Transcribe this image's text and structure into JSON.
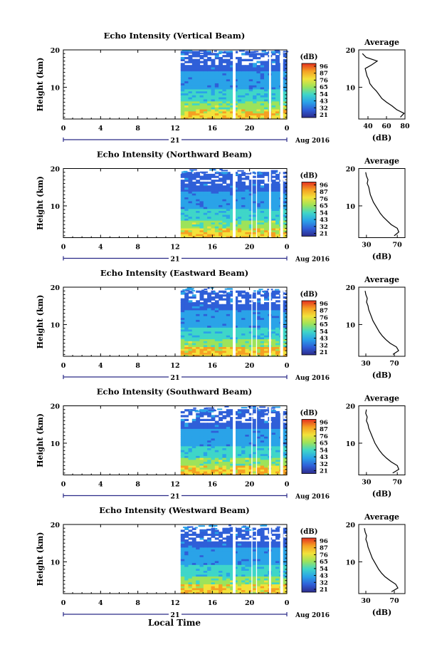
{
  "figure": {
    "xlabel": "Local Time",
    "x_ticks": [
      "0",
      "4",
      "8",
      "12",
      "16",
      "20",
      "0"
    ],
    "day_label": "21",
    "date_label": "Aug 2016",
    "ylabel": "Height (km)",
    "y_ticks": [
      "20",
      "10"
    ],
    "colorbar_unit": "(dB)",
    "avg_title": "Average",
    "avg_xlabel": "(dB)"
  },
  "chart_data": [
    {
      "type": "heatmap",
      "title": "Echo Intensity (Vertical Beam)",
      "x_range_hours": [
        0,
        24
      ],
      "data_start_hour": 12.6,
      "y_range_km": [
        1.5,
        20
      ],
      "data_top_km": 19.2,
      "gaps_hours": [
        [
          18.2,
          18.5
        ],
        [
          22.1,
          22.3
        ],
        [
          23.3,
          23.6
        ]
      ],
      "colorbar": {
        "min": 21,
        "max": 96,
        "ticks": [
          "96",
          "87",
          "76",
          "65",
          "54",
          "43",
          "32",
          "21"
        ]
      },
      "colors": [
        "#2d2c8c",
        "#2f5fd8",
        "#2aa3e8",
        "#3fd6c8",
        "#9de35a",
        "#f2e23a",
        "#f5a022",
        "#e4301f"
      ],
      "average_profile": {
        "x_range": [
          30,
          80
        ],
        "x_ticks": [
          "40",
          "60",
          "80"
        ],
        "height_km": [
          2,
          3,
          4,
          5,
          6,
          7,
          8,
          9,
          10,
          11,
          12,
          13,
          14,
          15,
          16,
          17,
          18,
          19
        ],
        "db": [
          75,
          79,
          71,
          66,
          60,
          55,
          52,
          49,
          45,
          42,
          41,
          39,
          38,
          37,
          44,
          50,
          38,
          34
        ]
      }
    },
    {
      "type": "heatmap",
      "title": "Echo Intensity (Northward Beam)",
      "x_range_hours": [
        0,
        24
      ],
      "data_start_hour": 12.6,
      "y_range_km": [
        1.5,
        20
      ],
      "data_top_km": 18.6,
      "gaps_hours": [
        [
          18.2,
          18.5
        ],
        [
          20.2,
          20.3
        ],
        [
          20.7,
          20.8
        ],
        [
          22.1,
          22.3
        ],
        [
          23.3,
          23.6
        ]
      ],
      "colorbar": {
        "min": 21,
        "max": 96,
        "ticks": [
          "96",
          "87",
          "76",
          "65",
          "54",
          "43",
          "32",
          "21"
        ]
      },
      "colors": [
        "#2d2c8c",
        "#2f5fd8",
        "#2aa3e8",
        "#3fd6c8",
        "#9de35a",
        "#f2e23a",
        "#f5a022",
        "#e4301f"
      ],
      "average_profile": {
        "x_range": [
          20,
          80
        ],
        "x_ticks": [
          "30",
          "70"
        ],
        "height_km": [
          2,
          3,
          4,
          5,
          6,
          7,
          8,
          9,
          10,
          11,
          12,
          13,
          14,
          15,
          16,
          17,
          18,
          19
        ],
        "db": [
          66,
          72,
          70,
          62,
          57,
          52,
          48,
          45,
          42,
          39,
          37,
          35,
          34,
          33,
          31,
          32,
          30,
          29
        ]
      }
    },
    {
      "type": "heatmap",
      "title": "Echo Intensity (Eastward Beam)",
      "x_range_hours": [
        0,
        24
      ],
      "data_start_hour": 12.6,
      "y_range_km": [
        1.5,
        20
      ],
      "data_top_km": 18.6,
      "gaps_hours": [
        [
          18.2,
          18.5
        ],
        [
          20.2,
          20.3
        ],
        [
          20.7,
          20.8
        ],
        [
          22.1,
          22.3
        ],
        [
          23.3,
          23.6
        ]
      ],
      "colorbar": {
        "min": 21,
        "max": 96,
        "ticks": [
          "96",
          "87",
          "76",
          "65",
          "54",
          "43",
          "32",
          "21"
        ]
      },
      "colors": [
        "#2d2c8c",
        "#2f5fd8",
        "#2aa3e8",
        "#3fd6c8",
        "#9de35a",
        "#f2e23a",
        "#f5a022",
        "#e4301f"
      ],
      "average_profile": {
        "x_range": [
          20,
          85
        ],
        "x_ticks": [
          "30",
          "70"
        ],
        "height_km": [
          2,
          3,
          4,
          5,
          6,
          7,
          8,
          9,
          10,
          11,
          12,
          13,
          14,
          15,
          16,
          17,
          18,
          19
        ],
        "db": [
          68,
          76,
          73,
          64,
          58,
          53,
          49,
          46,
          43,
          40,
          38,
          36,
          34,
          33,
          31,
          32,
          30,
          29
        ]
      }
    },
    {
      "type": "heatmap",
      "title": "Echo Intensity (Southward Beam)",
      "x_range_hours": [
        0,
        24
      ],
      "data_start_hour": 12.6,
      "y_range_km": [
        1.5,
        20
      ],
      "data_top_km": 18.6,
      "gaps_hours": [
        [
          18.2,
          18.5
        ],
        [
          20.2,
          20.3
        ],
        [
          20.7,
          20.8
        ],
        [
          22.1,
          22.3
        ],
        [
          23.3,
          23.6
        ]
      ],
      "colorbar": {
        "min": 21,
        "max": 96,
        "ticks": [
          "96",
          "87",
          "76",
          "65",
          "54",
          "43",
          "32",
          "21"
        ]
      },
      "colors": [
        "#2d2c8c",
        "#2f5fd8",
        "#2aa3e8",
        "#3fd6c8",
        "#9de35a",
        "#f2e23a",
        "#f5a022",
        "#e4301f"
      ],
      "average_profile": {
        "x_range": [
          20,
          80
        ],
        "x_ticks": [
          "30",
          "70"
        ],
        "height_km": [
          2,
          3,
          4,
          5,
          6,
          7,
          8,
          9,
          10,
          11,
          12,
          13,
          14,
          15,
          16,
          17,
          18,
          19
        ],
        "db": [
          64,
          72,
          70,
          62,
          56,
          51,
          47,
          44,
          41,
          39,
          37,
          35,
          33,
          32,
          30,
          31,
          29,
          30
        ]
      }
    },
    {
      "type": "heatmap",
      "title": "Echo Intensity (Westward Beam)",
      "x_range_hours": [
        0,
        24
      ],
      "data_start_hour": 12.6,
      "y_range_km": [
        1.5,
        20
      ],
      "data_top_km": 18.6,
      "gaps_hours": [
        [
          18.2,
          18.5
        ],
        [
          20.2,
          20.3
        ],
        [
          20.7,
          20.8
        ],
        [
          22.1,
          22.3
        ],
        [
          23.3,
          23.6
        ]
      ],
      "colorbar": {
        "min": 21,
        "max": 96,
        "ticks": [
          "96",
          "87",
          "76",
          "65",
          "54",
          "43",
          "32",
          "21"
        ]
      },
      "colors": [
        "#2d2c8c",
        "#2f5fd8",
        "#2aa3e8",
        "#3fd6c8",
        "#9de35a",
        "#f2e23a",
        "#f5a022",
        "#e4301f"
      ],
      "average_profile": {
        "x_range": [
          20,
          85
        ],
        "x_ticks": [
          "30",
          "70"
        ],
        "height_km": [
          2,
          3,
          4,
          5,
          6,
          7,
          8,
          9,
          10,
          11,
          12,
          13,
          14,
          15,
          16,
          17,
          18,
          19
        ],
        "db": [
          66,
          75,
          72,
          64,
          57,
          52,
          48,
          45,
          42,
          39,
          37,
          35,
          33,
          32,
          30,
          31,
          29,
          28
        ]
      }
    }
  ]
}
